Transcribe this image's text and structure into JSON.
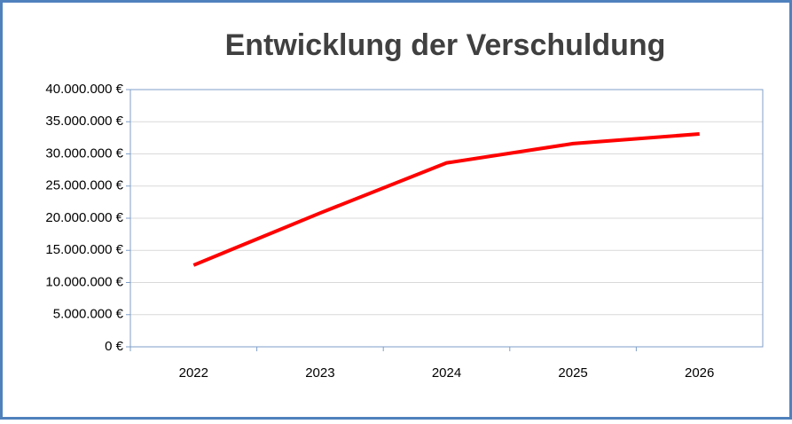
{
  "chart_data": {
    "type": "line",
    "title": "Entwicklung der Verschuldung",
    "categories": [
      "2022",
      "2023",
      "2024",
      "2025",
      "2026"
    ],
    "series": [
      {
        "color": "#ff0000",
        "values": [
          12700000,
          20800000,
          28600000,
          31600000,
          33100000
        ]
      }
    ],
    "ylim": [
      0,
      40000000
    ],
    "yticks": [
      {
        "value": 0,
        "label": "0 €"
      },
      {
        "value": 5000000,
        "label": "5.000.000 €"
      },
      {
        "value": 10000000,
        "label": "10.000.000 €"
      },
      {
        "value": 15000000,
        "label": "15.000.000 €"
      },
      {
        "value": 20000000,
        "label": "20.000.000 €"
      },
      {
        "value": 25000000,
        "label": "25.000.000 €"
      },
      {
        "value": 30000000,
        "label": "30.000.000 €"
      },
      {
        "value": 35000000,
        "label": "35.000.000 €"
      },
      {
        "value": 40000000,
        "label": "40.000.000 €"
      }
    ],
    "grid": true
  }
}
